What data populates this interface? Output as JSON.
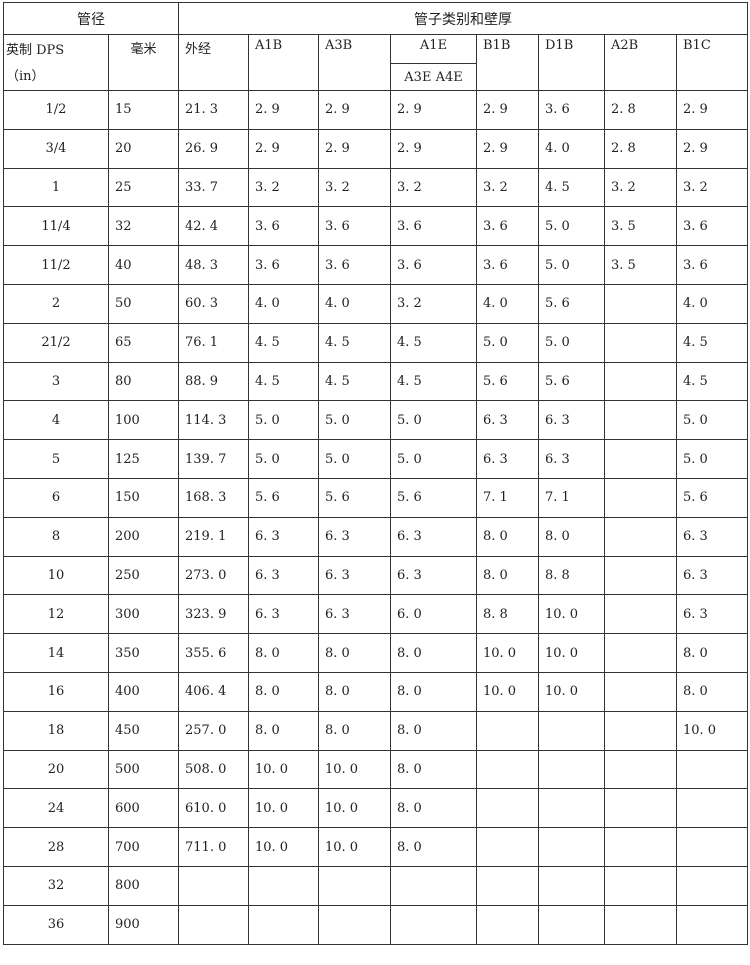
{
  "header": {
    "group_size": "管径",
    "group_types": "管子类别和壁厚",
    "col_inch": "英制 DPS",
    "col_inch_unit": "（in）",
    "col_mm": "毫米",
    "col_od": "外经",
    "types": [
      "A1B",
      "A3B",
      "A1E",
      "B1B",
      "D1B",
      "A2B",
      "B1C"
    ],
    "a1e_sub": "A3E A4E"
  },
  "rows": [
    [
      "1/2",
      "15",
      "21. 3",
      "2. 9",
      "2. 9",
      "2. 9",
      "2. 9",
      "3. 6",
      "2. 8",
      "2. 9"
    ],
    [
      "3/4",
      "20",
      "26. 9",
      "2. 9",
      "2. 9",
      "2. 9",
      "2. 9",
      "4. 0",
      "2. 8",
      "2. 9"
    ],
    [
      "1",
      "25",
      "33. 7",
      "3. 2",
      "3. 2",
      "3. 2",
      "3. 2",
      "4. 5",
      "3. 2",
      "3. 2"
    ],
    [
      "11/4",
      "32",
      "42. 4",
      "3. 6",
      "3. 6",
      "3. 6",
      "3. 6",
      "5. 0",
      "3. 5",
      "3. 6"
    ],
    [
      "11/2",
      "40",
      "48. 3",
      "3. 6",
      "3. 6",
      "3. 6",
      "3. 6",
      "5. 0",
      "3. 5",
      "3. 6"
    ],
    [
      "2",
      "50",
      "60. 3",
      "4. 0",
      "4. 0",
      "3. 2",
      "4. 0",
      "5. 6",
      "",
      "4. 0"
    ],
    [
      "21/2",
      "65",
      "76. 1",
      "4. 5",
      "4. 5",
      "4. 5",
      "5. 0",
      "5. 0",
      "",
      "4. 5"
    ],
    [
      "3",
      "80",
      "88. 9",
      "4. 5",
      "4. 5",
      "4. 5",
      "5. 6",
      "5. 6",
      "",
      "4. 5"
    ],
    [
      "4",
      "100",
      "114. 3",
      "5. 0",
      "5. 0",
      "5. 0",
      "6. 3",
      "6. 3",
      "",
      "5. 0"
    ],
    [
      "5",
      "125",
      "139. 7",
      "5. 0",
      "5. 0",
      "5. 0",
      "6. 3",
      "6. 3",
      "",
      "5. 0"
    ],
    [
      "6",
      "150",
      "168. 3",
      "5. 6",
      "5. 6",
      "5. 6",
      "7. 1",
      "7. 1",
      "",
      "5. 6"
    ],
    [
      "8",
      "200",
      "219. 1",
      "6. 3",
      "6. 3",
      "6. 3",
      "8. 0",
      "8. 0",
      "",
      "6. 3"
    ],
    [
      "10",
      "250",
      "273. 0",
      "6. 3",
      "6. 3",
      "6. 3",
      "8. 0",
      "8. 8",
      "",
      "6. 3"
    ],
    [
      "12",
      "300",
      "323. 9",
      "6. 3",
      "6. 3",
      "6. 0",
      "8. 8",
      "10. 0",
      "",
      "6. 3"
    ],
    [
      "14",
      "350",
      "355. 6",
      "8. 0",
      "8. 0",
      "8. 0",
      "10. 0",
      "10. 0",
      "",
      "8. 0"
    ],
    [
      "16",
      "400",
      "406. 4",
      "8. 0",
      "8. 0",
      "8. 0",
      "10. 0",
      "10. 0",
      "",
      "8. 0"
    ],
    [
      "18",
      "450",
      "257. 0",
      "8. 0",
      "8. 0",
      "8. 0",
      "",
      "",
      "",
      "10. 0"
    ],
    [
      "20",
      "500",
      "508. 0",
      "10. 0",
      "10. 0",
      "8. 0",
      "",
      "",
      "",
      ""
    ],
    [
      "24",
      "600",
      "610. 0",
      "10. 0",
      "10. 0",
      "8. 0",
      "",
      "",
      "",
      ""
    ],
    [
      "28",
      "700",
      "711. 0",
      "10. 0",
      "10. 0",
      "8. 0",
      "",
      "",
      "",
      ""
    ],
    [
      "32",
      "800",
      "",
      "",
      "",
      "",
      "",
      "",
      "",
      ""
    ],
    [
      "36",
      "900",
      "",
      "",
      "",
      "",
      "",
      "",
      "",
      ""
    ]
  ]
}
